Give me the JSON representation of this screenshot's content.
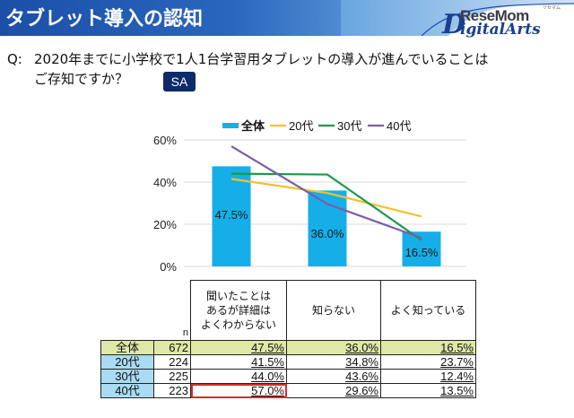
{
  "banner": {
    "title": "タブレット導入の認知",
    "logo": {
      "mark": "D",
      "line1": "ReseMom",
      "line2": "igitalArts",
      "kana": "リセマム"
    }
  },
  "question": {
    "label": "Q:",
    "line1": "2020年までに小学校で1人1台学習用タブレットの導入が進んでいることは",
    "line2": "ご存知ですか？",
    "badge": "SA"
  },
  "colors": {
    "bar": "#16aee8",
    "20代": "#f2c12e",
    "30代": "#1a9a4a",
    "40代": "#7a5ea8",
    "grid": "#d9d9d9",
    "total_row": "#dfe8a7",
    "age_label": "#a9dbf2",
    "highlight": "#d0302a"
  },
  "chart_data": {
    "type": "bar",
    "title": "",
    "xlabel": "",
    "ylabel": "",
    "ylim": [
      0,
      60
    ],
    "yticks": [
      "0%",
      "20%",
      "40%",
      "60%"
    ],
    "ytick_values": [
      0,
      20,
      40,
      60
    ],
    "grid": true,
    "legend_position": "top",
    "categories": [
      "聞いたことはあるが詳細はよくわからない",
      "知らない",
      "よく知っている"
    ],
    "bar_series": {
      "name": "全体",
      "values": [
        47.5,
        36.0,
        16.5
      ],
      "labels": [
        "47.5%",
        "36.0%",
        "16.5%"
      ]
    },
    "line_series": [
      {
        "name": "20代",
        "values": [
          41.5,
          34.8,
          23.7
        ]
      },
      {
        "name": "30代",
        "values": [
          44.0,
          43.6,
          12.4
        ]
      },
      {
        "name": "40代",
        "values": [
          57.0,
          29.6,
          13.5
        ]
      }
    ],
    "legend": [
      "全体",
      "20代",
      "30代",
      "40代"
    ]
  },
  "table": {
    "n_header": "n",
    "headers": [
      [
        "聞いたことは",
        "あるが詳細は",
        "よくわからない"
      ],
      [
        "知らない"
      ],
      [
        "よく知っている"
      ]
    ],
    "rows": [
      {
        "label": "全体",
        "n": "672",
        "values": [
          "47.5%",
          "36.0%",
          "16.5%"
        ]
      },
      {
        "label": "20代",
        "n": "224",
        "values": [
          "41.5%",
          "34.8%",
          "23.7%"
        ]
      },
      {
        "label": "30代",
        "n": "225",
        "values": [
          "44.0%",
          "43.6%",
          "12.4%"
        ]
      },
      {
        "label": "40代",
        "n": "223",
        "values": [
          "57.0%",
          "29.6%",
          "13.5%"
        ]
      }
    ],
    "highlighted_cell": {
      "row": 3,
      "col": 0
    }
  }
}
